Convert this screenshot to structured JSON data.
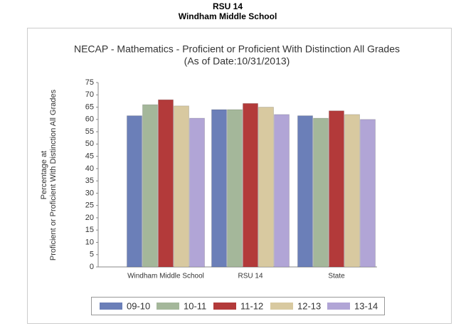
{
  "header": {
    "district": "RSU 14",
    "school": "Windham Middle School"
  },
  "chart_data": {
    "type": "bar",
    "title": "NECAP - Mathematics - Proficient or Proficient With Distinction All Grades",
    "subtitle": "(As of Date:10/31/2013)",
    "ylabel": [
      "Percentage at",
      "Proficient or Proficient With Distinction All Grades"
    ],
    "categories": [
      "Windham Middle School",
      "RSU 14",
      "State"
    ],
    "series": [
      {
        "name": "09-10",
        "color": "#6b7fb8",
        "values": [
          61.5,
          64,
          61.5
        ]
      },
      {
        "name": "10-11",
        "color": "#a4b79a",
        "values": [
          66,
          64,
          60.5
        ]
      },
      {
        "name": "11-12",
        "color": "#b33a3a",
        "values": [
          68,
          66.5,
          63.5
        ]
      },
      {
        "name": "12-13",
        "color": "#d8c9a0",
        "values": [
          65.5,
          65,
          62
        ]
      },
      {
        "name": "13-14",
        "color": "#b1a5d6",
        "values": [
          60.5,
          62,
          60
        ]
      }
    ],
    "ylim": [
      0,
      75
    ],
    "yticks": [
      0,
      5,
      10,
      15,
      20,
      25,
      30,
      35,
      40,
      45,
      50,
      55,
      60,
      65,
      70,
      75
    ],
    "grid": false,
    "legend": "bottom"
  }
}
